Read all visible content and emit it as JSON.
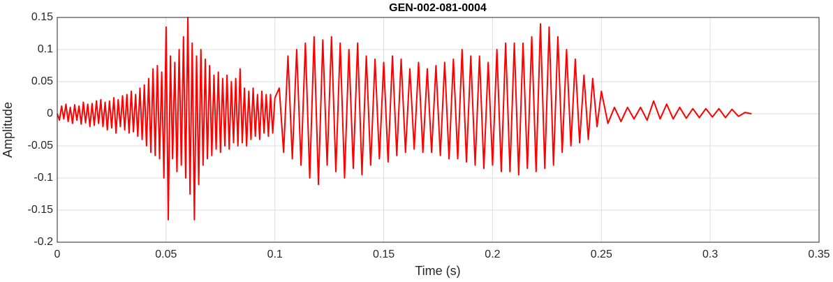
{
  "chart_data": {
    "type": "line",
    "title": "GEN-002-081-0004",
    "x_label": "Time (s)",
    "y_label": "Amplitude",
    "xlim": [
      0,
      0.35
    ],
    "xticks": [
      0,
      0.05,
      0.1,
      0.15,
      0.2,
      0.25,
      0.3,
      0.35
    ],
    "ylim": [
      -0.2,
      0.15
    ],
    "yticks": [
      -0.2,
      -0.15,
      -0.1,
      -0.05,
      0,
      0.05,
      0.1,
      0.15
    ],
    "grid": true,
    "x": [
      0,
      0.001,
      0.002,
      0.003,
      0.004,
      0.005,
      0.006,
      0.007,
      0.008,
      0.009,
      0.01,
      0.011,
      0.012,
      0.013,
      0.014,
      0.015,
      0.016,
      0.017,
      0.018,
      0.019,
      0.02,
      0.021,
      0.022,
      0.023,
      0.024,
      0.025,
      0.026,
      0.027,
      0.028,
      0.029,
      0.03,
      0.031,
      0.032,
      0.033,
      0.034,
      0.035,
      0.036,
      0.037,
      0.038,
      0.039,
      0.04,
      0.041,
      0.042,
      0.043,
      0.044,
      0.045,
      0.046,
      0.047,
      0.048,
      0.049,
      0.05,
      0.051,
      0.052,
      0.053,
      0.054,
      0.055,
      0.056,
      0.057,
      0.058,
      0.059,
      0.06,
      0.061,
      0.062,
      0.063,
      0.064,
      0.065,
      0.066,
      0.067,
      0.068,
      0.069,
      0.07,
      0.071,
      0.072,
      0.073,
      0.074,
      0.075,
      0.076,
      0.077,
      0.078,
      0.079,
      0.08,
      0.081,
      0.082,
      0.083,
      0.084,
      0.085,
      0.086,
      0.087,
      0.088,
      0.089,
      0.09,
      0.091,
      0.092,
      0.093,
      0.094,
      0.095,
      0.096,
      0.097,
      0.098,
      0.099,
      0.1,
      0.102,
      0.104,
      0.106,
      0.108,
      0.11,
      0.112,
      0.114,
      0.116,
      0.118,
      0.12,
      0.122,
      0.124,
      0.126,
      0.128,
      0.13,
      0.132,
      0.134,
      0.136,
      0.138,
      0.14,
      0.142,
      0.144,
      0.146,
      0.148,
      0.15,
      0.152,
      0.154,
      0.156,
      0.158,
      0.16,
      0.162,
      0.164,
      0.166,
      0.168,
      0.17,
      0.172,
      0.174,
      0.176,
      0.178,
      0.18,
      0.182,
      0.184,
      0.186,
      0.188,
      0.19,
      0.192,
      0.194,
      0.196,
      0.198,
      0.2,
      0.202,
      0.204,
      0.206,
      0.208,
      0.21,
      0.212,
      0.214,
      0.216,
      0.218,
      0.22,
      0.222,
      0.224,
      0.226,
      0.228,
      0.23,
      0.232,
      0.234,
      0.236,
      0.238,
      0.24,
      0.242,
      0.244,
      0.246,
      0.248,
      0.25,
      0.253,
      0.256,
      0.259,
      0.262,
      0.265,
      0.268,
      0.271,
      0.274,
      0.277,
      0.28,
      0.283,
      0.286,
      0.289,
      0.292,
      0.295,
      0.298,
      0.301,
      0.304,
      0.307,
      0.31,
      0.313,
      0.316,
      0.319
    ],
    "series": [
      {
        "color": "#ff0000",
        "values": [
          0,
          -0.01,
          0.012,
          -0.008,
          0.015,
          -0.012,
          0.01,
          -0.015,
          0.014,
          -0.01,
          0.012,
          -0.016,
          0.018,
          -0.014,
          0.015,
          -0.02,
          0.016,
          -0.018,
          0.02,
          -0.015,
          0.022,
          -0.02,
          0.018,
          -0.025,
          0.02,
          -0.022,
          0.025,
          -0.03,
          0.022,
          -0.02,
          0.028,
          -0.025,
          0.03,
          -0.03,
          0.035,
          -0.028,
          0.03,
          -0.035,
          0.04,
          -0.04,
          0.045,
          -0.05,
          0.055,
          -0.06,
          0.07,
          -0.065,
          0.075,
          -0.07,
          0.065,
          -0.1,
          0.135,
          -0.165,
          0.09,
          -0.07,
          0.08,
          -0.09,
          0.1,
          -0.08,
          0.12,
          -0.1,
          0.15,
          -0.125,
          0.11,
          -0.165,
          0.09,
          -0.11,
          0.1,
          -0.08,
          0.085,
          -0.07,
          0.075,
          -0.065,
          0.06,
          -0.055,
          0.065,
          -0.06,
          0.055,
          -0.05,
          0.06,
          -0.055,
          0.05,
          -0.045,
          0.055,
          -0.05,
          0.07,
          -0.045,
          0.04,
          -0.05,
          0.035,
          -0.04,
          0.04,
          -0.035,
          0.03,
          -0.04,
          0.035,
          -0.03,
          0.03,
          -0.035,
          0.03,
          -0.03,
          0.025,
          0.04,
          -0.06,
          0.09,
          -0.07,
          0.1,
          -0.08,
          0.11,
          -0.1,
          0.12,
          -0.11,
          0.115,
          -0.08,
          0.12,
          -0.09,
          0.11,
          -0.1,
          0.1,
          -0.085,
          0.11,
          -0.095,
          0.09,
          -0.08,
          0.085,
          -0.07,
          0.08,
          -0.075,
          0.09,
          -0.065,
          0.085,
          -0.06,
          0.07,
          -0.055,
          0.08,
          -0.06,
          0.07,
          -0.06,
          0.075,
          -0.065,
          0.08,
          -0.07,
          0.085,
          -0.07,
          0.1,
          -0.075,
          0.09,
          -0.08,
          0.09,
          -0.085,
          0.08,
          -0.08,
          0.1,
          -0.09,
          0.11,
          -0.09,
          0.11,
          -0.095,
          0.11,
          -0.085,
          0.12,
          -0.09,
          0.14,
          -0.085,
          0.135,
          -0.08,
          0.12,
          -0.06,
          0.1,
          -0.05,
          0.085,
          -0.045,
          0.06,
          -0.04,
          0.055,
          -0.02,
          0.035,
          -0.015,
          0.01,
          -0.012,
          0.01,
          -0.008,
          0.01,
          -0.01,
          0.02,
          -0.008,
          0.015,
          -0.008,
          0.01,
          -0.007,
          0.008,
          -0.006,
          0.008,
          -0.005,
          0.008,
          -0.006,
          0.007,
          -0.004,
          0.002,
          0
        ]
      }
    ]
  }
}
